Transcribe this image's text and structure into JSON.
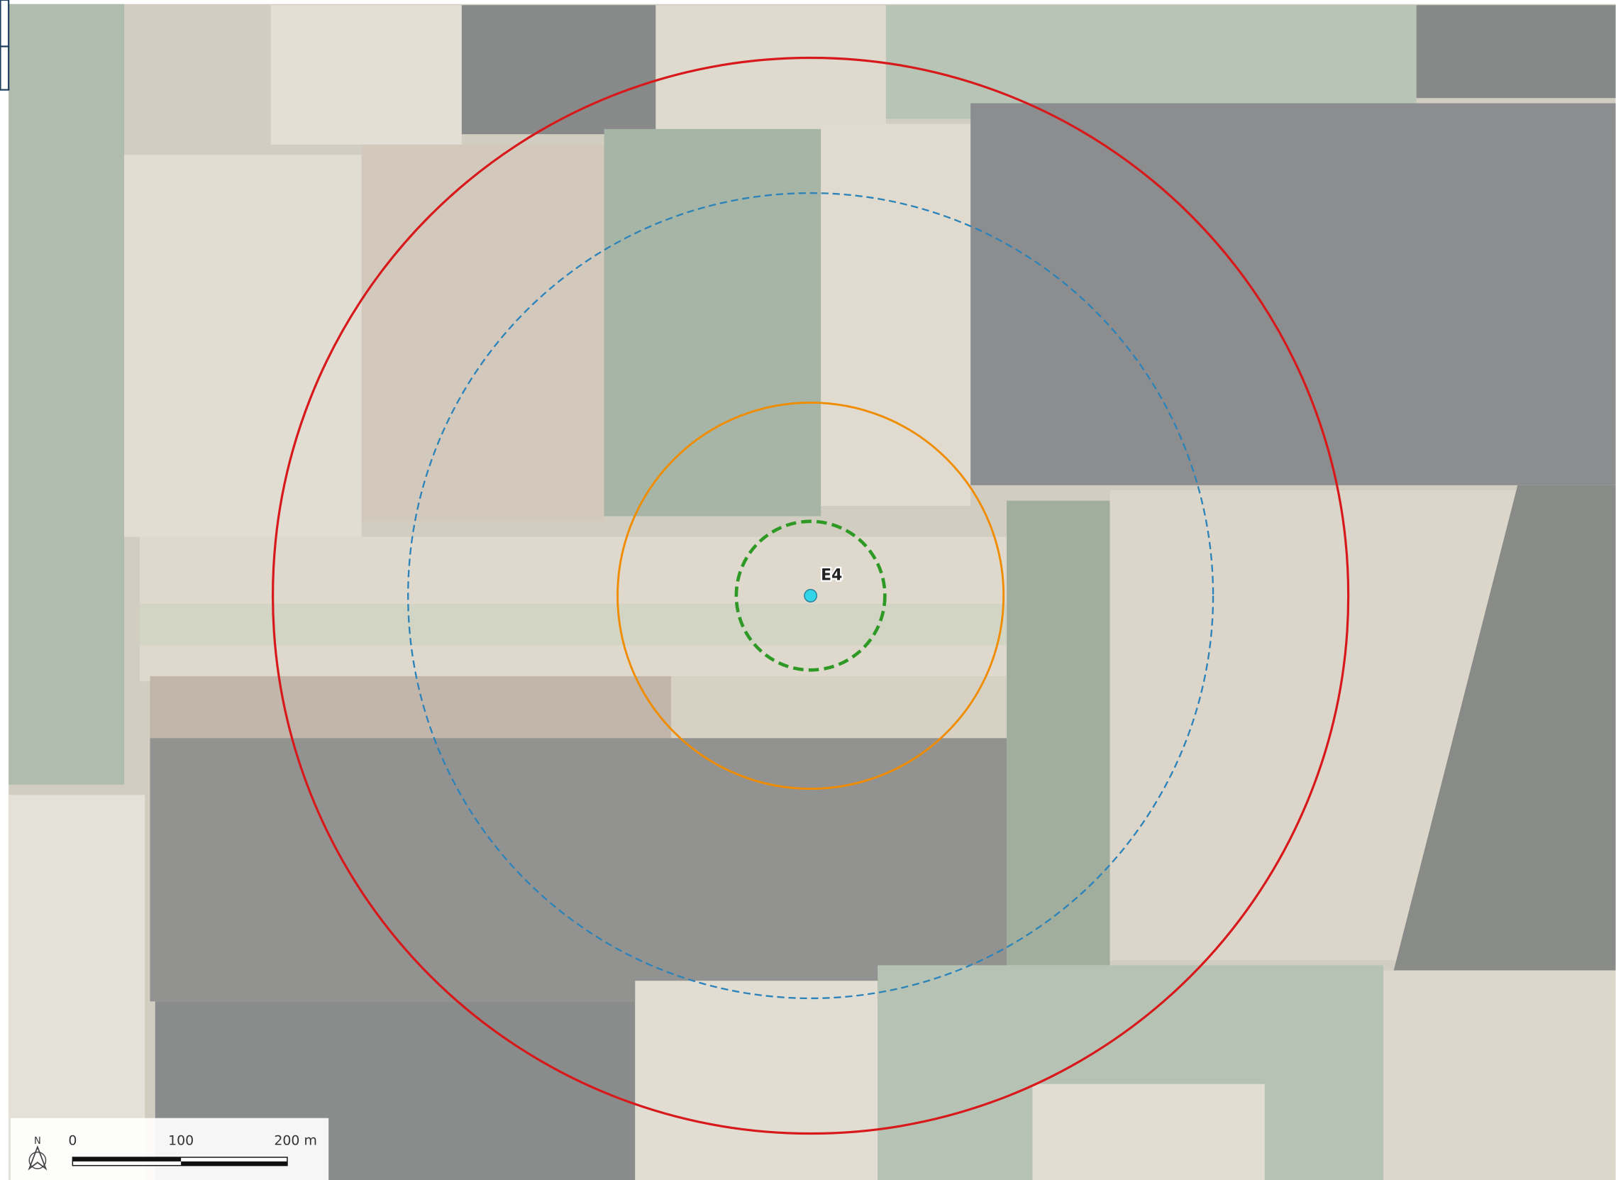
{
  "map": {
    "point_label": "E4",
    "north_arrow": "N",
    "scale_bar": {
      "labels": [
        "0",
        "100",
        "200 m"
      ]
    }
  }
}
